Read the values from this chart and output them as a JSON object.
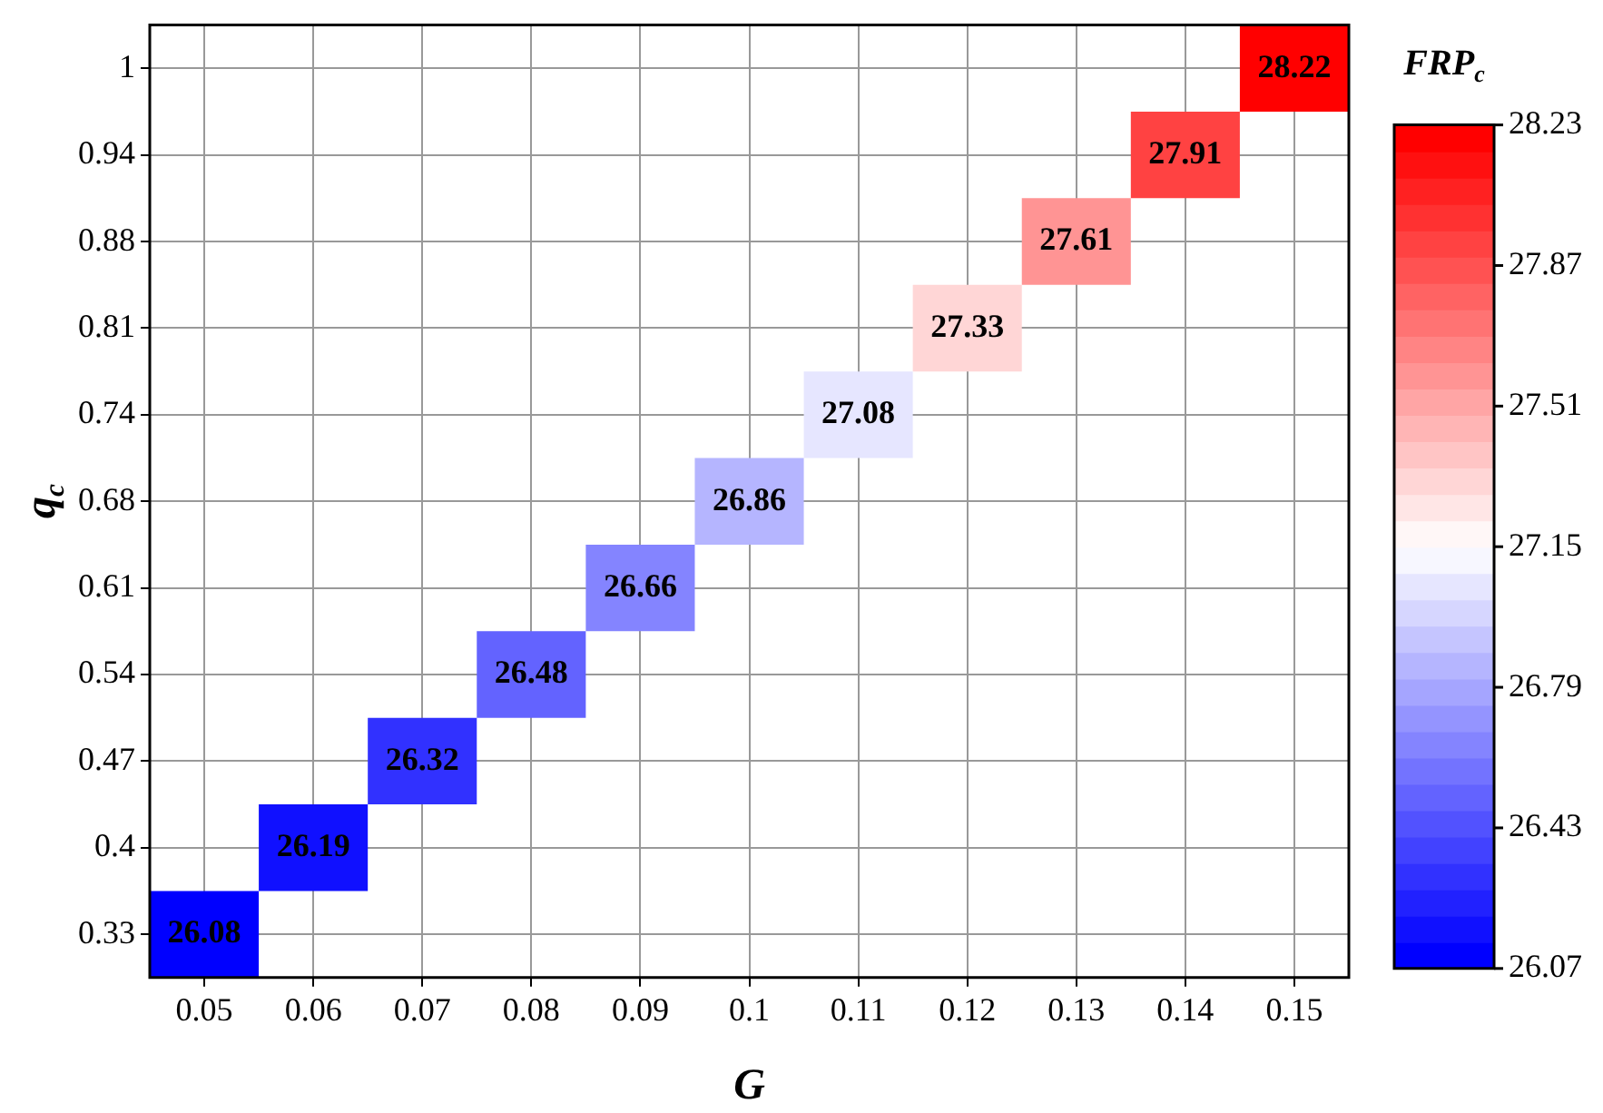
{
  "chart_data": {
    "type": "heatmap",
    "xlabel": "G",
    "ylabel": "q$_{c}$",
    "clabel": "FRP$_{c}$",
    "categories": [
      "0.05",
      "0.06",
      "0.07",
      "0.08",
      "0.09",
      "0.1",
      "0.11",
      "0.12",
      "0.13",
      "0.14",
      "0.15"
    ],
    "y_categories": [
      "1",
      "0.94",
      "0.88",
      "0.81",
      "0.74",
      "0.68",
      "0.61",
      "0.54",
      "0.47",
      "0.4",
      "0.33"
    ],
    "cells": [
      [
        null,
        null,
        null,
        null,
        null,
        null,
        null,
        null,
        null,
        null,
        28.22
      ],
      [
        null,
        null,
        null,
        null,
        null,
        null,
        null,
        null,
        null,
        27.91,
        null
      ],
      [
        null,
        null,
        null,
        null,
        null,
        null,
        null,
        null,
        27.61,
        null,
        null
      ],
      [
        null,
        null,
        null,
        null,
        null,
        null,
        null,
        27.33,
        null,
        null,
        null
      ],
      [
        null,
        null,
        null,
        null,
        null,
        null,
        27.08,
        null,
        null,
        null,
        null
      ],
      [
        null,
        null,
        null,
        null,
        null,
        26.86,
        null,
        null,
        null,
        null,
        null
      ],
      [
        null,
        null,
        null,
        null,
        26.66,
        null,
        null,
        null,
        null,
        null,
        null
      ],
      [
        null,
        null,
        null,
        26.48,
        null,
        null,
        null,
        null,
        null,
        null,
        null
      ],
      [
        null,
        null,
        26.32,
        null,
        null,
        null,
        null,
        null,
        null,
        null,
        null
      ],
      [
        null,
        26.19,
        null,
        null,
        null,
        null,
        null,
        null,
        null,
        null,
        null
      ],
      [
        26.08,
        null,
        null,
        null,
        null,
        null,
        null,
        null,
        null,
        null,
        null
      ]
    ],
    "clim": [
      26.07,
      28.23
    ],
    "cticks": [
      26.07,
      26.43,
      26.79,
      27.15,
      27.51,
      27.87,
      28.23
    ],
    "data_labels": true,
    "grid": true,
    "legend": false
  }
}
